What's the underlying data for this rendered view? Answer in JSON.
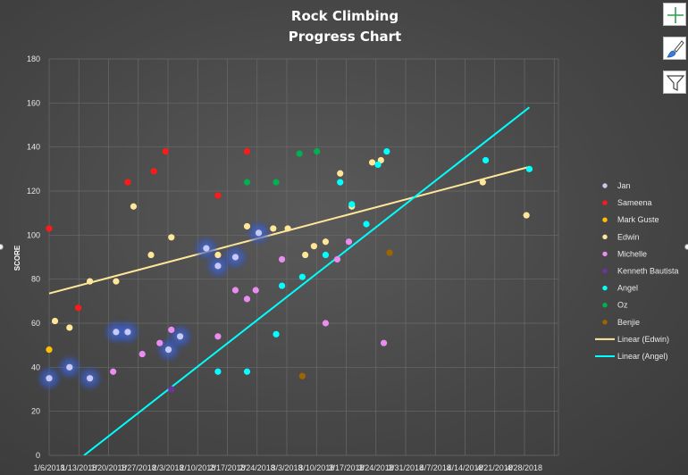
{
  "chart_data": {
    "type": "scatter",
    "title_lines": [
      "Rock Climbing",
      "Progress Chart"
    ],
    "xlabel": "",
    "ylabel": "SCORE",
    "ylim": [
      0,
      180
    ],
    "yticks": [
      0,
      20,
      40,
      60,
      80,
      100,
      120,
      140,
      160,
      180
    ],
    "xlim": [
      "2018-01-06",
      "2018-06-30"
    ],
    "xtick_labels": [
      "1/6/2018",
      "1/13/2018",
      "1/20/2018",
      "1/27/2018",
      "2/3/2018",
      "2/10/2018",
      "2/17/2018",
      "2/24/2018",
      "3/3/2018",
      "3/10/2018",
      "3/17/2018",
      "3/24/2018",
      "3/31/2018",
      "4/7/2018",
      "4/14/2018",
      "4/21/2018",
      "4/28/2018"
    ],
    "grid": true,
    "legend_position": "right",
    "series": [
      {
        "name": "Jan",
        "color": "#c9c9f5",
        "glow": true,
        "points": [
          [
            "2018-01-06",
            35
          ],
          [
            "2018-01-13",
            40
          ],
          [
            "2018-01-20",
            35
          ],
          [
            "2018-01-29",
            56
          ],
          [
            "2018-02-02",
            56
          ],
          [
            "2018-02-16",
            48
          ],
          [
            "2018-02-20",
            54
          ],
          [
            "2018-03-01",
            94
          ],
          [
            "2018-03-05",
            86
          ],
          [
            "2018-03-11",
            90
          ],
          [
            "2018-03-19",
            101
          ]
        ]
      },
      {
        "name": "Sameena",
        "color": "#ff1a1a",
        "points": [
          [
            "2018-01-06",
            103
          ],
          [
            "2018-01-16",
            67
          ],
          [
            "2018-02-02",
            124
          ],
          [
            "2018-02-11",
            129
          ],
          [
            "2018-02-15",
            138
          ],
          [
            "2018-03-05",
            118
          ],
          [
            "2018-03-15",
            138
          ]
        ]
      },
      {
        "name": "Mark Guste",
        "color": "#ffc000",
        "points": [
          [
            "2018-01-06",
            48
          ]
        ]
      },
      {
        "name": "Edwin",
        "color": "#ffe699",
        "points": [
          [
            "2018-01-08",
            61
          ],
          [
            "2018-01-13",
            58
          ],
          [
            "2018-01-20",
            79
          ],
          [
            "2018-01-29",
            79
          ],
          [
            "2018-02-04",
            113
          ],
          [
            "2018-02-10",
            91
          ],
          [
            "2018-02-17",
            99
          ],
          [
            "2018-03-05",
            91
          ],
          [
            "2018-03-15",
            104
          ],
          [
            "2018-03-24",
            103
          ],
          [
            "2018-03-29",
            103
          ],
          [
            "2018-04-04",
            91
          ],
          [
            "2018-04-07",
            95
          ],
          [
            "2018-04-11",
            97
          ],
          [
            "2018-04-16",
            128
          ],
          [
            "2018-04-20",
            113
          ],
          [
            "2018-04-27",
            133
          ],
          [
            "2018-04-30",
            134
          ],
          [
            "2018-06-04",
            124
          ],
          [
            "2018-06-19",
            109
          ]
        ]
      },
      {
        "name": "Michelle",
        "color": "#ea8cf0",
        "points": [
          [
            "2018-01-28",
            38
          ],
          [
            "2018-02-07",
            46
          ],
          [
            "2018-02-13",
            51
          ],
          [
            "2018-02-17",
            57
          ],
          [
            "2018-03-05",
            54
          ],
          [
            "2018-03-11",
            75
          ],
          [
            "2018-03-15",
            71
          ],
          [
            "2018-03-18",
            75
          ],
          [
            "2018-03-27",
            89
          ],
          [
            "2018-04-11",
            60
          ],
          [
            "2018-04-15",
            89
          ],
          [
            "2018-04-19",
            97
          ],
          [
            "2018-05-01",
            51
          ]
        ]
      },
      {
        "name": "Kenneth Bautista",
        "color": "#7030a0",
        "points": [
          [
            "2018-02-17",
            30
          ]
        ]
      },
      {
        "name": "Angel",
        "color": "#00ffff",
        "points": [
          [
            "2018-03-05",
            38
          ],
          [
            "2018-03-15",
            38
          ],
          [
            "2018-03-25",
            55
          ],
          [
            "2018-03-27",
            77
          ],
          [
            "2018-04-03",
            81
          ],
          [
            "2018-04-11",
            91
          ],
          [
            "2018-04-16",
            124
          ],
          [
            "2018-04-20",
            114
          ],
          [
            "2018-04-25",
            105
          ],
          [
            "2018-04-29",
            132
          ],
          [
            "2018-05-02",
            138
          ],
          [
            "2018-06-05",
            134
          ],
          [
            "2018-06-20",
            130
          ]
        ]
      },
      {
        "name": "Oz",
        "color": "#00b050",
        "points": [
          [
            "2018-03-15",
            124
          ],
          [
            "2018-03-25",
            124
          ],
          [
            "2018-04-02",
            137
          ],
          [
            "2018-04-08",
            138
          ]
        ]
      },
      {
        "name": "Benjie",
        "color": "#9c6500",
        "points": [
          [
            "2018-04-03",
            36
          ],
          [
            "2018-05-03",
            92
          ]
        ]
      }
    ],
    "trendlines": [
      {
        "name": "Linear (Edwin)",
        "color": "#ffe699",
        "from": [
          "2018-01-06",
          73.5
        ],
        "to": [
          "2018-06-20",
          131
        ]
      },
      {
        "name": "Linear (Angel)",
        "color": "#00ffff",
        "from": [
          "2018-01-18",
          0
        ],
        "to": [
          "2018-06-20",
          158
        ]
      }
    ]
  },
  "toolbar": {
    "items": [
      {
        "name": "chart-elements",
        "icon": "plus-icon"
      },
      {
        "name": "chart-styles",
        "icon": "paintbrush-icon"
      },
      {
        "name": "chart-filters",
        "icon": "funnel-icon"
      }
    ]
  }
}
